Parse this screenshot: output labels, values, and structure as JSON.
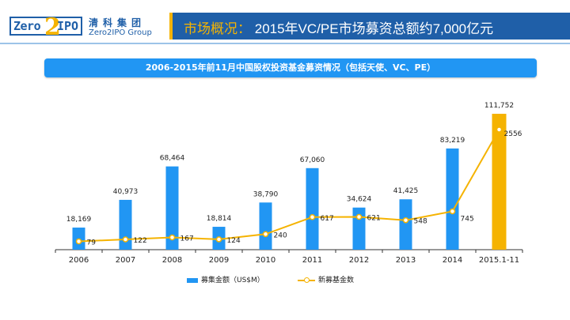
{
  "logo": {
    "zero": "Zero",
    "two": "2",
    "ipo": "IPO",
    "cn_name": "清科集团",
    "en_name": "Zero2IPO Group"
  },
  "header": {
    "prefix": "市场概况：",
    "title": "2015年VC/PE市场募资总额约7,000亿元"
  },
  "colors": {
    "brand_blue": "#1f5fa8",
    "bar_blue": "#2196f3",
    "highlight": "#f5b301"
  },
  "chart_data": {
    "type": "bar+line",
    "title": "2006-2015年前11月中国股权投资基金募资情况（包括天使、VC、PE）",
    "categories": [
      "2006",
      "2007",
      "2008",
      "2009",
      "2010",
      "2011",
      "2012",
      "2013",
      "2014",
      "2015.1-11"
    ],
    "series": [
      {
        "name": "募集金额（US$M）",
        "type": "bar",
        "values": [
          18169,
          40973,
          68464,
          18814,
          38790,
          67060,
          34624,
          41425,
          83219,
          111752
        ],
        "labels": [
          "18,169",
          "40,973",
          "68,464",
          "18,814",
          "38,790",
          "67,060",
          "34,624",
          "41,425",
          "83,219",
          "111,752"
        ]
      },
      {
        "name": "新募基金数",
        "type": "line",
        "values": [
          79,
          122,
          167,
          124,
          240,
          617,
          621,
          548,
          745,
          2556
        ],
        "labels": [
          "79",
          "122",
          "167",
          "124",
          "240",
          "617",
          "621",
          "548",
          "745",
          "2556"
        ]
      }
    ],
    "highlight_category": "2015.1-11",
    "legend": [
      "募集金额（US$M）",
      "新募基金数"
    ],
    "legend_position": "bottom"
  }
}
